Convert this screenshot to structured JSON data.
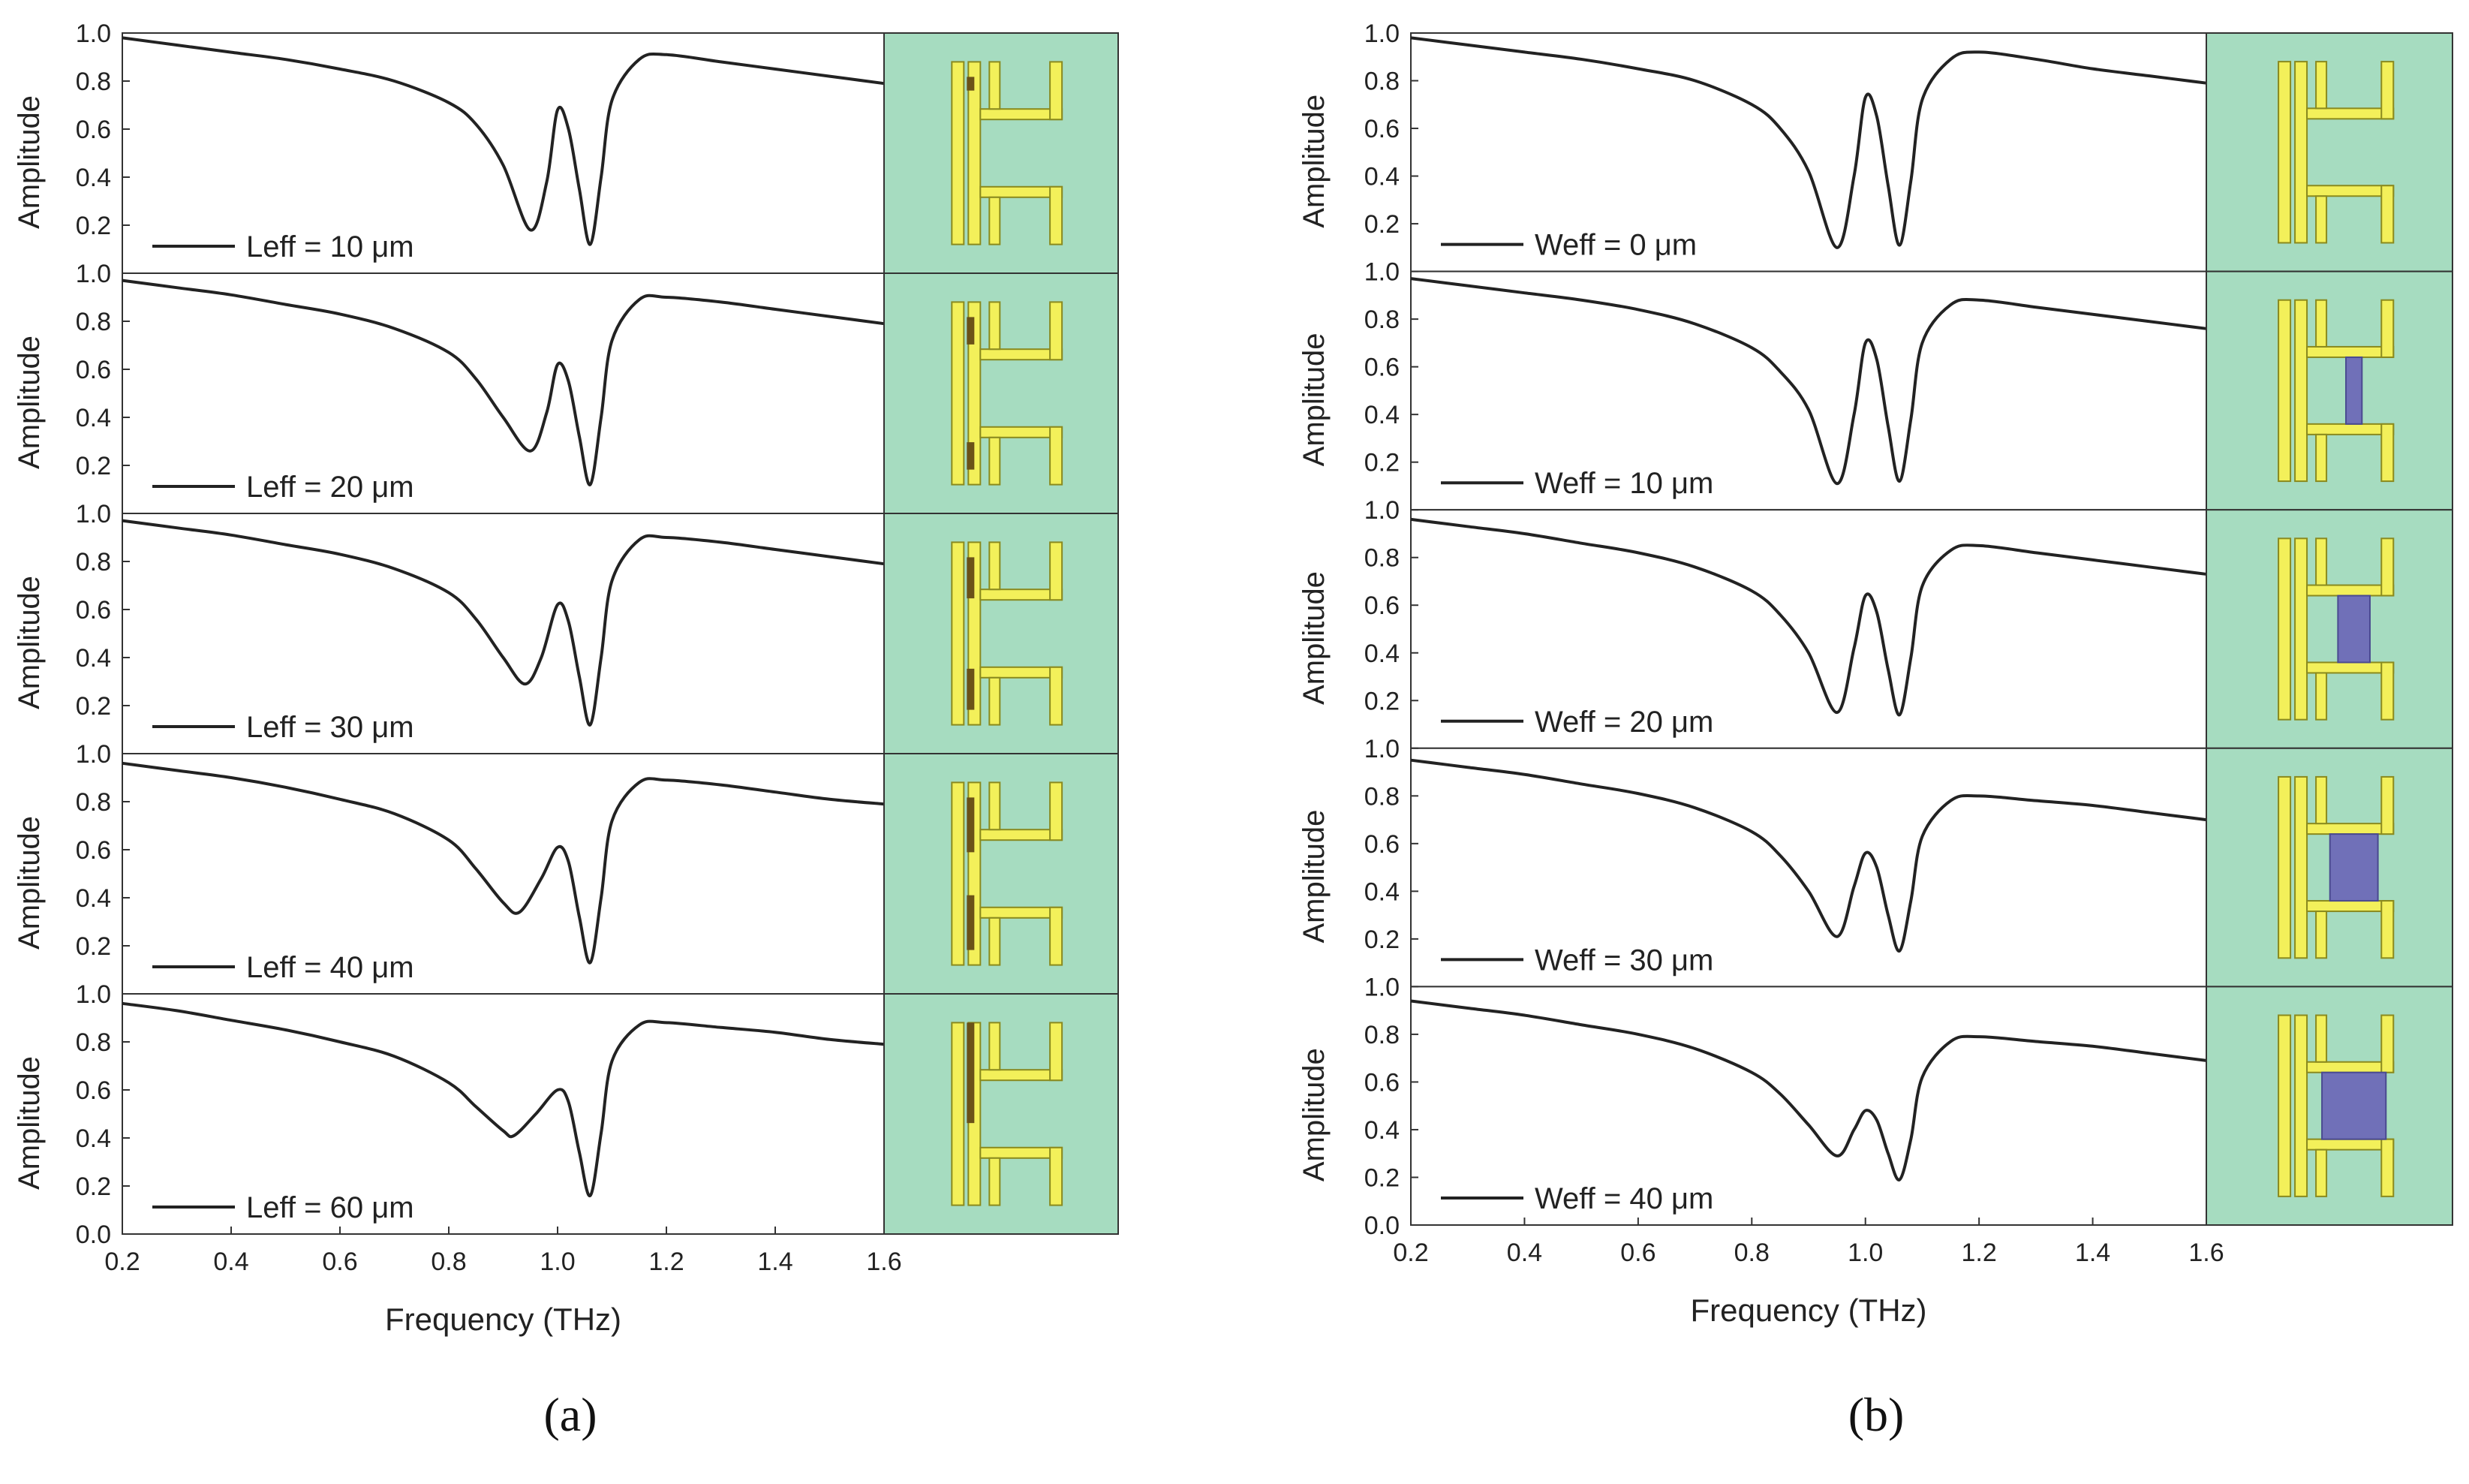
{
  "panels": [
    {
      "id": "a",
      "caption": "(a)",
      "inset_type": "leff",
      "xlabel": "Frequency (THz)",
      "ylabel": "Amplitude",
      "x_ticks": [
        "0.2",
        "0.4",
        "0.6",
        "0.8",
        "1.0",
        "1.2",
        "1.4",
        "1.6"
      ],
      "y_ticks_top": [
        "0.2",
        "0.4",
        "0.6",
        "0.8",
        "1.0"
      ],
      "y_ticks_bottom": [
        "0.0",
        "0.2",
        "0.4",
        "0.6",
        "0.8",
        "1.0"
      ]
    },
    {
      "id": "b",
      "caption": "(b)",
      "inset_type": "weff",
      "xlabel": "Frequency (THz)",
      "ylabel": "Amplitude",
      "x_ticks": [
        "0.2",
        "0.4",
        "0.6",
        "0.8",
        "1.0",
        "1.2",
        "1.4",
        "1.6"
      ],
      "y_ticks_top": [
        "0.2",
        "0.4",
        "0.6",
        "0.8",
        "1.0"
      ],
      "y_ticks_bottom": [
        "0.0",
        "0.2",
        "0.4",
        "0.6",
        "0.8",
        "1.0"
      ]
    }
  ],
  "colors": {
    "curve": "#222222",
    "inset_bg": "#a6dcc0",
    "metal": "#f3f05a",
    "metal_edge": "#8a8a1e",
    "dark_patch": "#6b5218",
    "blue_patch": "#7070b8"
  },
  "chart_data": [
    {
      "panel": "a",
      "type": "line",
      "xlabel": "Frequency (THz)",
      "ylabel": "Amplitude",
      "xlim": [
        0.2,
        1.6
      ],
      "ylim": [
        0.0,
        1.0
      ],
      "series": [
        {
          "name": "Leff=10 μm",
          "legend": "Leff = 10 μm",
          "eff": 10,
          "x": [
            0.2,
            0.3,
            0.4,
            0.5,
            0.6,
            0.7,
            0.8,
            0.85,
            0.9,
            0.95,
            0.98,
            1.0,
            1.02,
            1.04,
            1.06,
            1.08,
            1.1,
            1.15,
            1.2,
            1.3,
            1.4,
            1.5,
            1.6
          ],
          "y": [
            0.98,
            0.95,
            0.92,
            0.89,
            0.85,
            0.8,
            0.71,
            0.62,
            0.45,
            0.18,
            0.38,
            0.68,
            0.6,
            0.35,
            0.12,
            0.4,
            0.72,
            0.89,
            0.91,
            0.88,
            0.85,
            0.82,
            0.79
          ]
        },
        {
          "name": "Leff=20 μm",
          "legend": "Leff = 20 μm",
          "eff": 20,
          "x": [
            0.2,
            0.3,
            0.4,
            0.5,
            0.6,
            0.7,
            0.8,
            0.85,
            0.9,
            0.95,
            0.98,
            1.0,
            1.02,
            1.04,
            1.06,
            1.08,
            1.1,
            1.15,
            1.2,
            1.3,
            1.4,
            1.5,
            1.6
          ],
          "y": [
            0.97,
            0.94,
            0.91,
            0.87,
            0.83,
            0.77,
            0.67,
            0.56,
            0.4,
            0.26,
            0.42,
            0.62,
            0.55,
            0.32,
            0.12,
            0.4,
            0.72,
            0.89,
            0.9,
            0.88,
            0.85,
            0.82,
            0.79
          ]
        },
        {
          "name": "Leff=30 μm",
          "legend": "Leff = 30 μm",
          "eff": 30,
          "x": [
            0.2,
            0.3,
            0.4,
            0.5,
            0.6,
            0.7,
            0.8,
            0.85,
            0.9,
            0.94,
            0.97,
            1.0,
            1.02,
            1.04,
            1.06,
            1.08,
            1.1,
            1.15,
            1.2,
            1.3,
            1.4,
            1.5,
            1.6
          ],
          "y": [
            0.97,
            0.94,
            0.91,
            0.87,
            0.83,
            0.77,
            0.67,
            0.56,
            0.4,
            0.29,
            0.4,
            0.62,
            0.55,
            0.32,
            0.12,
            0.4,
            0.72,
            0.89,
            0.9,
            0.88,
            0.85,
            0.82,
            0.79
          ]
        },
        {
          "name": "Leff=40 μm",
          "legend": "Leff = 40 μm",
          "eff": 40,
          "x": [
            0.2,
            0.3,
            0.4,
            0.5,
            0.6,
            0.7,
            0.8,
            0.85,
            0.9,
            0.93,
            0.97,
            1.0,
            1.02,
            1.04,
            1.06,
            1.08,
            1.1,
            1.15,
            1.2,
            1.3,
            1.4,
            1.5,
            1.6
          ],
          "y": [
            0.96,
            0.93,
            0.9,
            0.86,
            0.81,
            0.75,
            0.64,
            0.52,
            0.38,
            0.34,
            0.48,
            0.61,
            0.55,
            0.32,
            0.13,
            0.4,
            0.72,
            0.88,
            0.89,
            0.87,
            0.84,
            0.81,
            0.79
          ]
        },
        {
          "name": "Leff=60 μm",
          "legend": "Leff = 60 μm",
          "eff": 60,
          "x": [
            0.2,
            0.3,
            0.4,
            0.5,
            0.6,
            0.7,
            0.8,
            0.85,
            0.9,
            0.92,
            0.96,
            1.0,
            1.02,
            1.04,
            1.06,
            1.08,
            1.1,
            1.15,
            1.2,
            1.3,
            1.4,
            1.5,
            1.6
          ],
          "y": [
            0.96,
            0.93,
            0.89,
            0.85,
            0.8,
            0.74,
            0.63,
            0.53,
            0.43,
            0.41,
            0.5,
            0.6,
            0.55,
            0.34,
            0.16,
            0.42,
            0.72,
            0.87,
            0.88,
            0.86,
            0.84,
            0.81,
            0.79
          ]
        }
      ]
    },
    {
      "panel": "b",
      "type": "line",
      "xlabel": "Frequency (THz)",
      "ylabel": "Amplitude",
      "xlim": [
        0.2,
        1.6
      ],
      "ylim": [
        0.0,
        1.0
      ],
      "series": [
        {
          "name": "Weff=0 μm",
          "legend": "Weff = 0 μm",
          "eff": 0,
          "x": [
            0.2,
            0.3,
            0.4,
            0.5,
            0.6,
            0.7,
            0.8,
            0.85,
            0.9,
            0.95,
            0.98,
            1.0,
            1.02,
            1.04,
            1.06,
            1.08,
            1.1,
            1.15,
            1.2,
            1.3,
            1.4,
            1.5,
            1.6
          ],
          "y": [
            0.98,
            0.95,
            0.92,
            0.89,
            0.85,
            0.8,
            0.7,
            0.6,
            0.42,
            0.1,
            0.4,
            0.73,
            0.65,
            0.36,
            0.11,
            0.38,
            0.72,
            0.89,
            0.92,
            0.89,
            0.85,
            0.82,
            0.79
          ]
        },
        {
          "name": "Weff=10 μm",
          "legend": "Weff = 10 μm",
          "eff": 10,
          "x": [
            0.2,
            0.3,
            0.4,
            0.5,
            0.6,
            0.7,
            0.8,
            0.85,
            0.9,
            0.95,
            0.98,
            1.0,
            1.02,
            1.04,
            1.06,
            1.08,
            1.1,
            1.15,
            1.2,
            1.3,
            1.4,
            1.5,
            1.6
          ],
          "y": [
            0.97,
            0.94,
            0.91,
            0.88,
            0.84,
            0.78,
            0.68,
            0.58,
            0.42,
            0.11,
            0.4,
            0.7,
            0.63,
            0.35,
            0.12,
            0.38,
            0.7,
            0.86,
            0.88,
            0.85,
            0.82,
            0.79,
            0.76
          ]
        },
        {
          "name": "Weff=20 μm",
          "legend": "Weff = 20 μm",
          "eff": 20,
          "x": [
            0.2,
            0.3,
            0.4,
            0.5,
            0.6,
            0.7,
            0.8,
            0.85,
            0.9,
            0.95,
            0.98,
            1.0,
            1.02,
            1.04,
            1.06,
            1.08,
            1.1,
            1.15,
            1.2,
            1.3,
            1.4,
            1.5,
            1.6
          ],
          "y": [
            0.96,
            0.93,
            0.9,
            0.86,
            0.82,
            0.76,
            0.66,
            0.56,
            0.4,
            0.15,
            0.42,
            0.64,
            0.57,
            0.33,
            0.14,
            0.38,
            0.68,
            0.83,
            0.85,
            0.82,
            0.79,
            0.76,
            0.73
          ]
        },
        {
          "name": "Weff=30 μm",
          "legend": "Weff = 30 μm",
          "eff": 30,
          "x": [
            0.2,
            0.3,
            0.4,
            0.5,
            0.6,
            0.7,
            0.8,
            0.85,
            0.9,
            0.95,
            0.98,
            1.0,
            1.02,
            1.04,
            1.06,
            1.08,
            1.1,
            1.15,
            1.2,
            1.3,
            1.4,
            1.5,
            1.6
          ],
          "y": [
            0.95,
            0.92,
            0.89,
            0.85,
            0.81,
            0.75,
            0.65,
            0.55,
            0.4,
            0.21,
            0.42,
            0.56,
            0.5,
            0.3,
            0.15,
            0.36,
            0.63,
            0.78,
            0.8,
            0.78,
            0.76,
            0.73,
            0.7
          ]
        },
        {
          "name": "Weff=40 μm",
          "legend": "Weff = 40 μm",
          "eff": 40,
          "x": [
            0.2,
            0.3,
            0.4,
            0.5,
            0.6,
            0.7,
            0.8,
            0.85,
            0.9,
            0.95,
            0.98,
            1.0,
            1.02,
            1.04,
            1.06,
            1.08,
            1.1,
            1.15,
            1.2,
            1.3,
            1.4,
            1.5,
            1.6
          ],
          "y": [
            0.94,
            0.91,
            0.88,
            0.84,
            0.8,
            0.74,
            0.64,
            0.55,
            0.42,
            0.29,
            0.4,
            0.48,
            0.44,
            0.3,
            0.19,
            0.36,
            0.62,
            0.77,
            0.79,
            0.77,
            0.75,
            0.72,
            0.69
          ]
        }
      ]
    }
  ]
}
